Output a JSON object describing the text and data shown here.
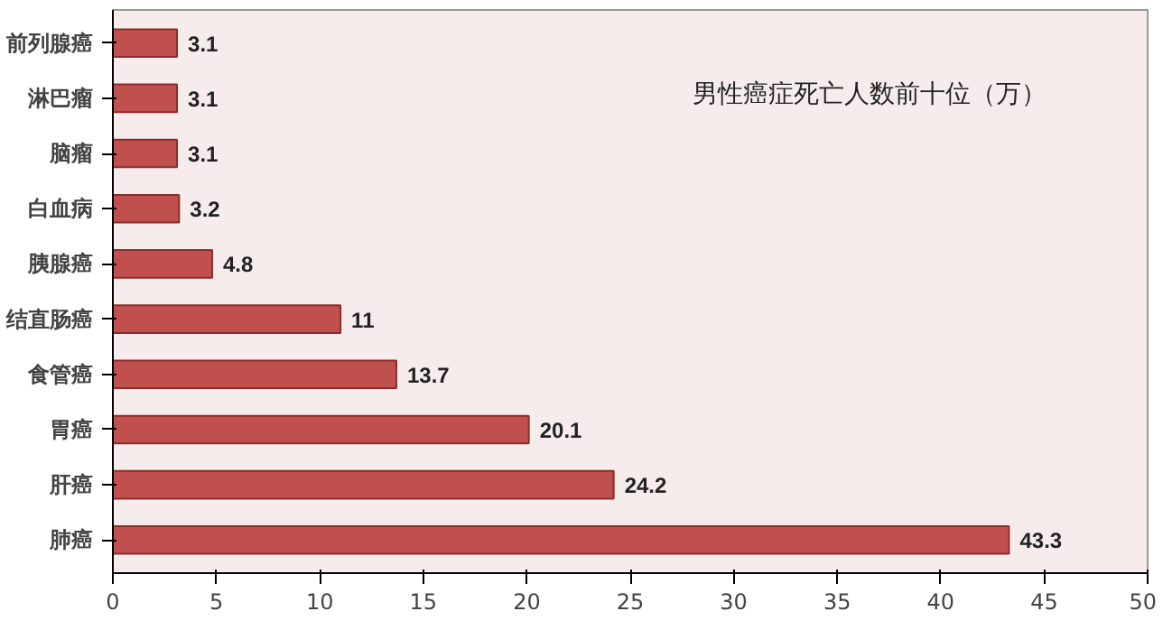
{
  "chart_data": {
    "type": "bar",
    "orientation": "horizontal",
    "title": "男性癌症死亡人数前十位（万）",
    "categories": [
      "前列腺癌",
      "淋巴瘤",
      "脑瘤",
      "白血病",
      "胰腺癌",
      "结直肠癌",
      "食管癌",
      "胃癌",
      "肝癌",
      "肺癌"
    ],
    "values": [
      3.1,
      3.1,
      3.1,
      3.2,
      4.8,
      11,
      13.7,
      20.1,
      24.2,
      43.3
    ],
    "color": "#c0504d",
    "xlim": [
      0,
      50
    ],
    "xticks": [
      0,
      5,
      10,
      15,
      20,
      25,
      30,
      35,
      40,
      45,
      50
    ],
    "grid": false,
    "data_labels": true
  }
}
